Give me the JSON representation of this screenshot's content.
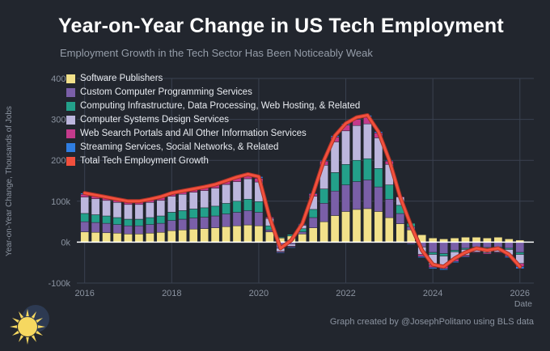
{
  "title": "Year-on-Year Change in US Tech Employment",
  "subtitle": "Employment Growth in the Tech Sector Has Been Noticeably Weak",
  "footer": "Graph created by @JosephPolitano using BLS data",
  "colors": {
    "background": "#22262e",
    "grid": "#3a4150",
    "axis_text": "#8b93a0",
    "title_text": "#ffffff",
    "subtitle_text": "#959da9",
    "legend_text": "#e9ecf1",
    "zero_line": "#ffffff",
    "total_line": "#f2503d",
    "total_line_casing": "#a93226",
    "logo_sun": "#f6d860",
    "logo_night": "#2d3a52"
  },
  "chart_data": {
    "type": "bar",
    "stacked": true,
    "title": "Year-on-Year Change in US Tech Employment",
    "subtitle": "Employment Growth in the Tech Sector Has Been Noticeably Weak",
    "xlabel": "Date",
    "ylabel": "Year-on-Year Change, Thousands of Jobs",
    "units": "thousands of jobs",
    "grid": true,
    "legend_position": "top-left",
    "xlim": [
      2015.82,
      2026.32
    ],
    "ylim": [
      -100,
      400
    ],
    "xticks": [
      2016,
      2018,
      2020,
      2022,
      2024,
      2026
    ],
    "yticks": [
      {
        "value": -100,
        "label": "-100k"
      },
      {
        "value": 0,
        "label": "0k"
      },
      {
        "value": 100,
        "label": "100k"
      },
      {
        "value": 200,
        "label": "200k"
      },
      {
        "value": 300,
        "label": "300k"
      },
      {
        "value": 400,
        "label": "400k"
      }
    ],
    "x": [
      2016.0,
      2016.25,
      2016.5,
      2016.75,
      2017.0,
      2017.25,
      2017.5,
      2017.75,
      2018.0,
      2018.25,
      2018.5,
      2018.75,
      2019.0,
      2019.25,
      2019.5,
      2019.75,
      2020.0,
      2020.25,
      2020.5,
      2020.75,
      2021.0,
      2021.25,
      2021.5,
      2021.75,
      2022.0,
      2022.25,
      2022.5,
      2022.75,
      2023.0,
      2023.25,
      2023.5,
      2023.75,
      2024.0,
      2024.25,
      2024.5,
      2024.75,
      2025.0,
      2025.25,
      2025.5,
      2025.75,
      2026.0
    ],
    "series": [
      {
        "name": "Software Publishers",
        "color": "#f2e18a",
        "values": [
          25,
          24,
          23,
          22,
          20,
          20,
          22,
          24,
          28,
          30,
          32,
          33,
          35,
          38,
          40,
          42,
          40,
          25,
          10,
          15,
          20,
          35,
          50,
          65,
          75,
          80,
          82,
          75,
          60,
          45,
          30,
          18,
          10,
          8,
          10,
          12,
          12,
          10,
          12,
          8,
          5
        ]
      },
      {
        "name": "Custom Computer Programming Services",
        "color": "#7a5fa8",
        "values": [
          25,
          24,
          23,
          21,
          20,
          20,
          21,
          22,
          25,
          26,
          27,
          28,
          29,
          31,
          33,
          35,
          33,
          5,
          -15,
          -5,
          5,
          25,
          45,
          60,
          65,
          68,
          70,
          60,
          45,
          25,
          8,
          -12,
          -25,
          -28,
          -20,
          -15,
          -12,
          -13,
          -12,
          -15,
          -25
        ]
      },
      {
        "name": "Computing Infrastructure, Data Processing, Web Hosting, & Related",
        "color": "#23a08a",
        "values": [
          20,
          19,
          18,
          17,
          16,
          16,
          17,
          18,
          20,
          21,
          22,
          23,
          24,
          26,
          27,
          28,
          26,
          10,
          2,
          4,
          8,
          20,
          35,
          45,
          50,
          52,
          52,
          45,
          35,
          20,
          8,
          0,
          -5,
          -6,
          -4,
          -3,
          -2,
          -2,
          -2,
          -3,
          -5
        ]
      },
      {
        "name": "Computer Systems Design Services",
        "color": "#bcb6dd",
        "values": [
          40,
          39,
          38,
          37,
          36,
          36,
          37,
          38,
          39,
          40,
          41,
          42,
          44,
          46,
          48,
          50,
          48,
          18,
          -8,
          -5,
          8,
          32,
          58,
          75,
          82,
          85,
          85,
          75,
          50,
          20,
          -2,
          -18,
          -25,
          -24,
          -18,
          -14,
          -10,
          -11,
          -10,
          -13,
          -22
        ]
      },
      {
        "name": "Web Search Portals and All Other Information Services",
        "color": "#c43a8c",
        "values": [
          7,
          6,
          6,
          6,
          6,
          6,
          6,
          7,
          7,
          7,
          7,
          8,
          8,
          8,
          9,
          9,
          9,
          3,
          -2,
          -2,
          2,
          6,
          10,
          12,
          14,
          15,
          16,
          12,
          8,
          2,
          -2,
          -5,
          -7,
          -7,
          -5,
          -3,
          -2,
          -3,
          -2,
          -4,
          -8
        ]
      },
      {
        "name": "Streaming Services, Social Networks, & Related",
        "color": "#2f7de1",
        "values": [
          3,
          3,
          2,
          2,
          2,
          2,
          2,
          2,
          1,
          1,
          1,
          1,
          1,
          1,
          2,
          2,
          4,
          -1,
          -2,
          -2,
          2,
          2,
          2,
          3,
          4,
          5,
          5,
          3,
          2,
          -2,
          -2,
          -3,
          -3,
          -3,
          -3,
          -2,
          -1,
          -1,
          -1,
          -3,
          -5
        ]
      }
    ],
    "total": {
      "name": "Total Tech Employment Growth",
      "color": "#f2503d"
    }
  }
}
